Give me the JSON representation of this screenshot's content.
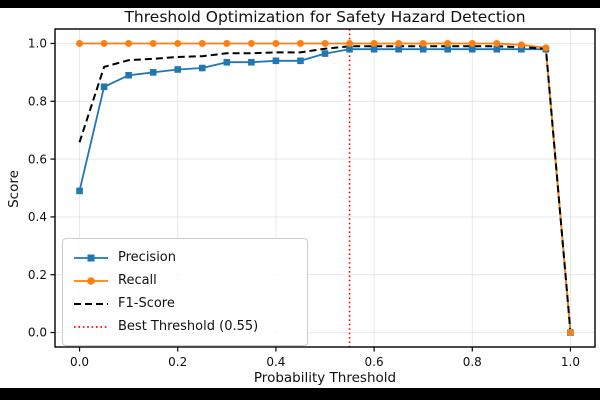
{
  "window": {
    "letterbox_color": "#000000",
    "canvas_color": "#ffffff"
  },
  "chart_data": {
    "type": "line",
    "title": "Threshold Optimization for Safety Hazard Detection",
    "xlabel": "Probability Threshold",
    "ylabel": "Score",
    "xlim": [
      -0.05,
      1.05
    ],
    "ylim": [
      -0.05,
      1.05
    ],
    "grid": true,
    "grid_color": "#b0b0b0",
    "xticks": [
      0.0,
      0.2,
      0.4,
      0.6,
      0.8,
      1.0
    ],
    "yticks": [
      0.0,
      0.2,
      0.4,
      0.6,
      0.8,
      1.0
    ],
    "xtick_labels": [
      "0.0",
      "0.2",
      "0.4",
      "0.6",
      "0.8",
      "1.0"
    ],
    "ytick_labels": [
      "0.0",
      "0.2",
      "0.4",
      "0.6",
      "0.8",
      "1.0"
    ],
    "x": [
      0.0,
      0.05,
      0.1,
      0.15,
      0.2,
      0.25,
      0.3,
      0.35,
      0.4,
      0.45,
      0.5,
      0.55,
      0.6,
      0.65,
      0.7,
      0.75,
      0.8,
      0.85,
      0.9,
      0.95,
      1.0
    ],
    "series": [
      {
        "name": "Precision",
        "color": "#1f77b4",
        "line": "solid",
        "marker": "square",
        "values": [
          0.49,
          0.85,
          0.89,
          0.9,
          0.91,
          0.915,
          0.935,
          0.935,
          0.94,
          0.94,
          0.965,
          0.98,
          0.98,
          0.98,
          0.98,
          0.98,
          0.98,
          0.98,
          0.98,
          0.98,
          0.0
        ]
      },
      {
        "name": "Recall",
        "color": "#ff7f0e",
        "line": "solid",
        "marker": "circle",
        "values": [
          1.0,
          1.0,
          1.0,
          1.0,
          1.0,
          1.0,
          1.0,
          1.0,
          1.0,
          1.0,
          1.0,
          1.0,
          1.0,
          1.0,
          1.0,
          1.0,
          1.0,
          1.0,
          0.995,
          0.985,
          0.0
        ]
      },
      {
        "name": "F1-Score",
        "color": "#000000",
        "line": "dashed",
        "marker": "none",
        "values": [
          0.658,
          0.919,
          0.942,
          0.947,
          0.953,
          0.956,
          0.966,
          0.966,
          0.969,
          0.969,
          0.982,
          0.99,
          0.99,
          0.99,
          0.99,
          0.99,
          0.99,
          0.99,
          0.987,
          0.982,
          0.0
        ]
      }
    ],
    "annotations": [
      {
        "name": "Best Threshold (0.55)",
        "type": "vline",
        "x": 0.55,
        "color": "#ff0000",
        "line": "dotted"
      }
    ],
    "legend_position": "lower-left"
  },
  "legend": {
    "items": [
      {
        "label": "Precision",
        "color": "#1f77b4",
        "style": "solid",
        "marker": "square"
      },
      {
        "label": "Recall",
        "color": "#ff7f0e",
        "style": "solid",
        "marker": "circle"
      },
      {
        "label": "F1-Score",
        "color": "#000000",
        "style": "dashed",
        "marker": "none"
      },
      {
        "label": "Best Threshold (0.55)",
        "color": "#ff0000",
        "style": "dotted",
        "marker": "none"
      }
    ]
  }
}
